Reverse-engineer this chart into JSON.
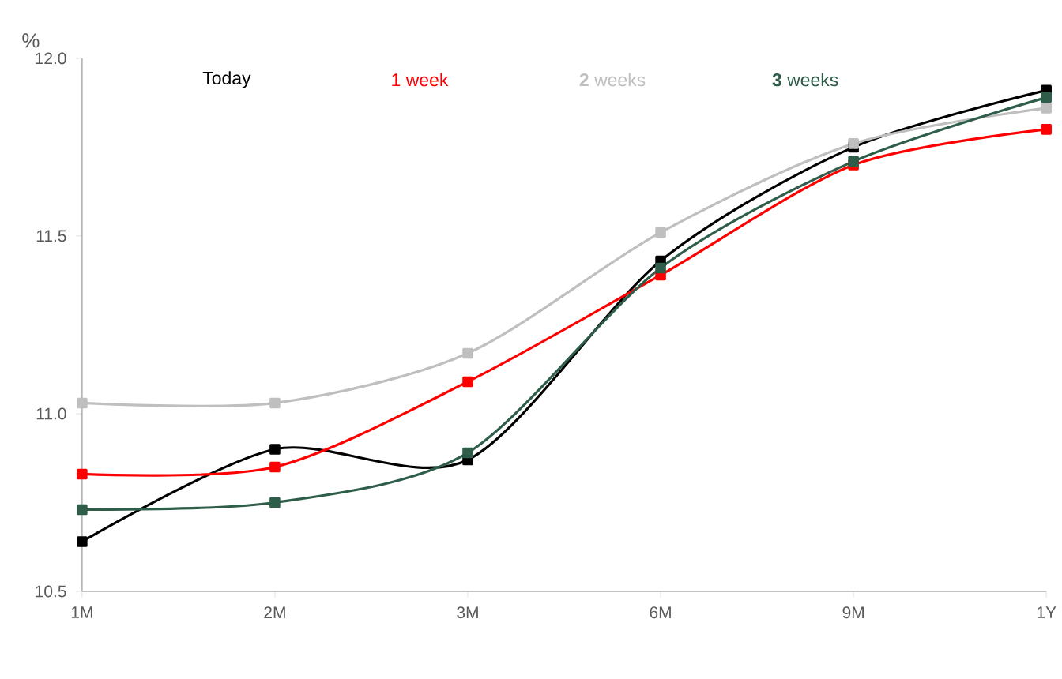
{
  "chart_data": {
    "type": "line",
    "ylabel": "%",
    "categories": [
      "1M",
      "2M",
      "3M",
      "6M",
      "9M",
      "1Y"
    ],
    "series": [
      {
        "name": "Today",
        "color": "#000000",
        "values": [
          10.64,
          10.9,
          10.87,
          11.43,
          11.75,
          11.91
        ]
      },
      {
        "name": "1 week",
        "color": "#ff0000",
        "values": [
          10.83,
          10.85,
          11.09,
          11.39,
          11.7,
          11.8
        ]
      },
      {
        "name": "**2** weeks",
        "color": "#bfbfbf",
        "values": [
          11.03,
          11.03,
          11.17,
          11.51,
          11.76,
          11.86
        ]
      },
      {
        "name": "**3** weeks",
        "color": "#2e5e4a",
        "values": [
          10.73,
          10.75,
          10.89,
          11.41,
          11.71,
          11.89
        ]
      }
    ],
    "ylim": [
      10.5,
      12.0
    ],
    "yticks": [
      {
        "value": 10.5,
        "label": "10.5"
      },
      {
        "value": 11.0,
        "label": "11.0"
      },
      {
        "value": 11.5,
        "label": "11.5"
      },
      {
        "value": 12.0,
        "label": "12.0"
      }
    ],
    "legend": "top",
    "marker": "square",
    "line_style": "solid",
    "grid": false
  }
}
